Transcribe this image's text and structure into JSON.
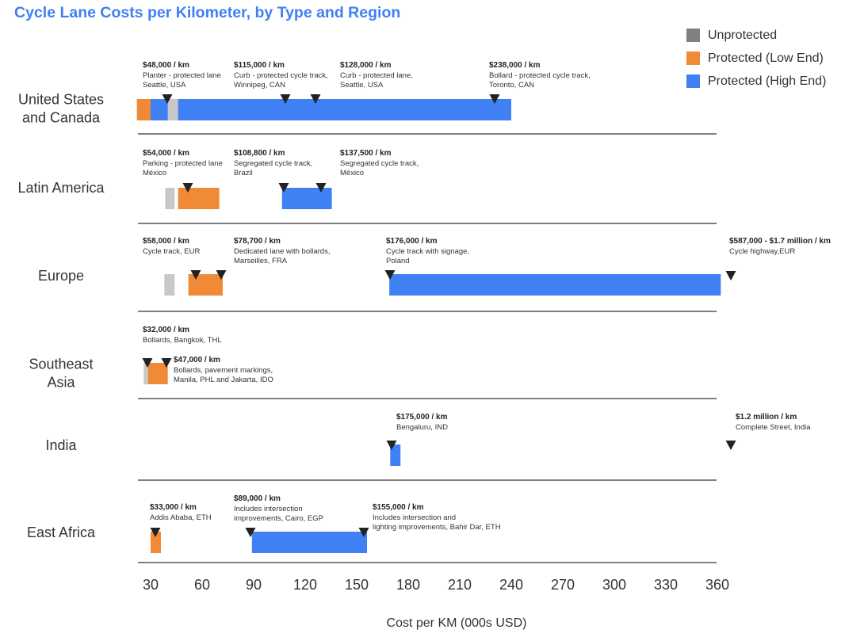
{
  "chart_data": {
    "type": "bar",
    "title": "Cycle Lane Costs per Kilometer, by Type and Region",
    "xlabel": "Cost per KM (000s USD)",
    "x_ticks": [
      30,
      60,
      90,
      120,
      150,
      180,
      210,
      240,
      270,
      300,
      330,
      360
    ],
    "xlim": [
      22,
      362
    ],
    "legend_position": "top-right",
    "grid": false,
    "series": [
      {
        "name": "Unprotected",
        "color": "#808080",
        "bar_color": "#c8c8c8"
      },
      {
        "name": "Protected (Low End)",
        "color": "#f08a36"
      },
      {
        "name": "Protected (High End)",
        "color": "#3f80f4"
      }
    ],
    "regions": [
      {
        "name": "United States\nand Canada",
        "bars": [
          {
            "series": "Protected (Low End)",
            "start": 22,
            "end": 30
          },
          {
            "series": "Protected (High End)",
            "start": 30,
            "end": 240
          },
          {
            "series": "Unprotected",
            "start": 40,
            "end": 46
          }
        ],
        "annotations": [
          {
            "label": "$48,000 / km",
            "lines": [
              "Planter - protected lane",
              "Seattle, USA"
            ],
            "value": 48
          },
          {
            "label": "$115,000 / km",
            "lines": [
              "Curb - protected cycle track,",
              "Winnipeg, CAN"
            ],
            "value": 115
          },
          {
            "label": "$128,000 / km",
            "lines": [
              "Curb - protected lane,",
              "Seattle, USA"
            ],
            "value": 128
          },
          {
            "label": "$238,000 / km",
            "lines": [
              "Bollard - protected cycle track,",
              "Toronto, CAN"
            ],
            "value": 238
          }
        ]
      },
      {
        "name": "Latin America",
        "bars": [
          {
            "series": "Unprotected",
            "start": 38.5,
            "end": 44
          },
          {
            "series": "Protected (Low End)",
            "start": 46,
            "end": 70
          },
          {
            "series": "Protected (High End)",
            "start": 106.5,
            "end": 135.5
          }
        ],
        "annotations": [
          {
            "label": "$54,000 / km",
            "lines": [
              "Parking - protected lane",
              "México"
            ],
            "value": 54
          },
          {
            "label": "$108,800 / km",
            "lines": [
              "Segregated cycle track,",
              "Brazil"
            ],
            "value": 108.8
          },
          {
            "label": "$137,500 / km",
            "lines": [
              "Segregated cycle track,",
              "México"
            ],
            "value": 137.5
          }
        ]
      },
      {
        "name": "Europe",
        "bars": [
          {
            "series": "Unprotected",
            "start": 38,
            "end": 44
          },
          {
            "series": "Protected (Low End)",
            "start": 52,
            "end": 72
          },
          {
            "series": "Protected (High End)",
            "start": 169,
            "end": 362
          }
        ],
        "annotations": [
          {
            "label": "$58,000 / km",
            "lines": [
              "Cycle track, EUR"
            ],
            "value": 58
          },
          {
            "label": "$78,700 / km",
            "lines": [
              "Dedicated lane with bollards,",
              "Marseilles, FRA"
            ],
            "value": 78.7
          },
          {
            "label": "$176,000 / km",
            "lines": [
              "Cycle track with signage,",
              "Poland"
            ],
            "value": 176
          },
          {
            "label": "$587,000 - $1.7 million / km",
            "lines": [
              "Cycle highway,EUR"
            ],
            "value": 587
          }
        ]
      },
      {
        "name": "Southeast\nAsia",
        "bars": [
          {
            "series": "Unprotected",
            "start": 26,
            "end": 28.5
          },
          {
            "series": "Protected (Low End)",
            "start": 28.5,
            "end": 40
          }
        ],
        "annotations": [
          {
            "label": "$32,000 / km",
            "lines": [
              "Bollards, Bangkok, THL"
            ],
            "value": 32
          },
          {
            "label": "$47,000 / km",
            "lines": [
              "Bollards, pavement markings,",
              "Manila, PHL and Jakarta, IDO"
            ],
            "value": 47
          }
        ]
      },
      {
        "name": "India",
        "bars": [
          {
            "series": "Protected (High End)",
            "start": 169.5,
            "end": 175.5
          }
        ],
        "annotations": [
          {
            "label": "$175,000 / km",
            "lines": [
              "Bengaluru, IND"
            ],
            "value": 175
          },
          {
            "label": "$1.2 million / km",
            "lines": [
              "Complete Street, India"
            ],
            "value": 1200
          }
        ]
      },
      {
        "name": "East Africa",
        "bars": [
          {
            "series": "Protected (Low End)",
            "start": 30,
            "end": 36
          },
          {
            "series": "Protected (High End)",
            "start": 89,
            "end": 156
          }
        ],
        "annotations": [
          {
            "label": "$33,000 / km",
            "lines": [
              "Addis Ababa, ETH"
            ],
            "value": 33
          },
          {
            "label": "$89,000 / km",
            "lines": [
              "Includes intersection",
              "improvements, Cairo, EGP"
            ],
            "value": 89
          },
          {
            "label": "$155,000 / km",
            "lines": [
              "Includes intersection and",
              "lighting improvements, Bahir Dar, ETH"
            ],
            "value": 155
          }
        ]
      }
    ]
  }
}
